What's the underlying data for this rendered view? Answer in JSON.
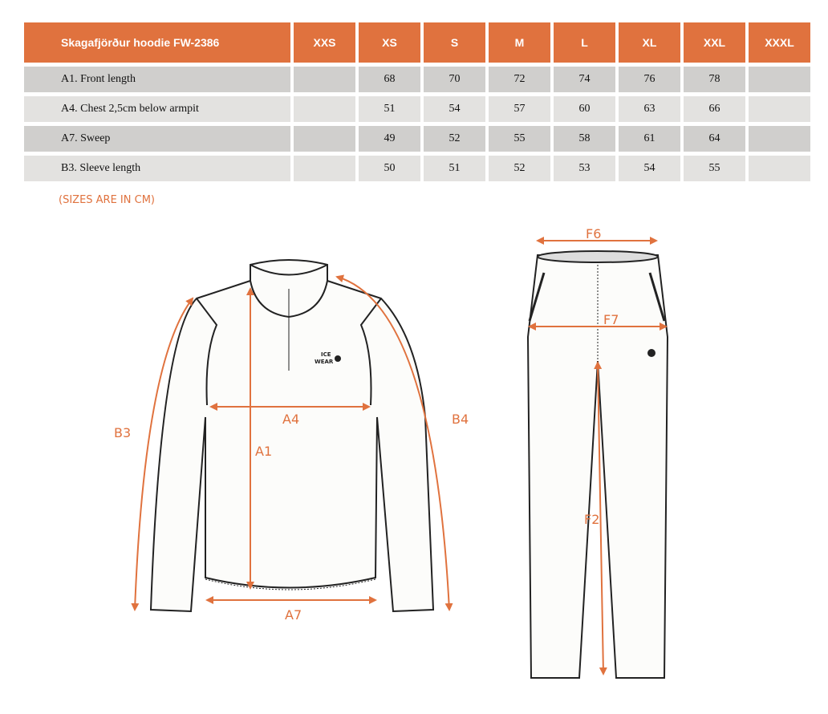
{
  "table": {
    "headers": [
      "Skagafjörður hoodie FW-2386",
      "XXS",
      "XS",
      "S",
      "M",
      "L",
      "XL",
      "XXL",
      "XXXL"
    ],
    "rows": [
      [
        "A1. Front length",
        "",
        "68",
        "70",
        "72",
        "74",
        "76",
        "78",
        ""
      ],
      [
        "A4. Chest 2,5cm below armpit",
        "",
        "51",
        "54",
        "57",
        "60",
        "63",
        "66",
        ""
      ],
      [
        "A7. Sweep",
        "",
        "49",
        "52",
        "55",
        "58",
        "61",
        "64",
        ""
      ],
      [
        "B3. Sleeve length",
        "",
        "50",
        "51",
        "52",
        "53",
        "54",
        "55",
        ""
      ]
    ]
  },
  "note": "(SIZES ARE IN CM)",
  "diagram": {
    "accent": "#e0723e",
    "top_labels": {
      "a1": "A1",
      "a4": "A4",
      "a7": "A7",
      "b3": "B3",
      "b4": "B4"
    },
    "pants_labels": {
      "f6": "F6",
      "f7": "F7",
      "f2": "F2"
    },
    "logo": "ICE WEAR"
  }
}
